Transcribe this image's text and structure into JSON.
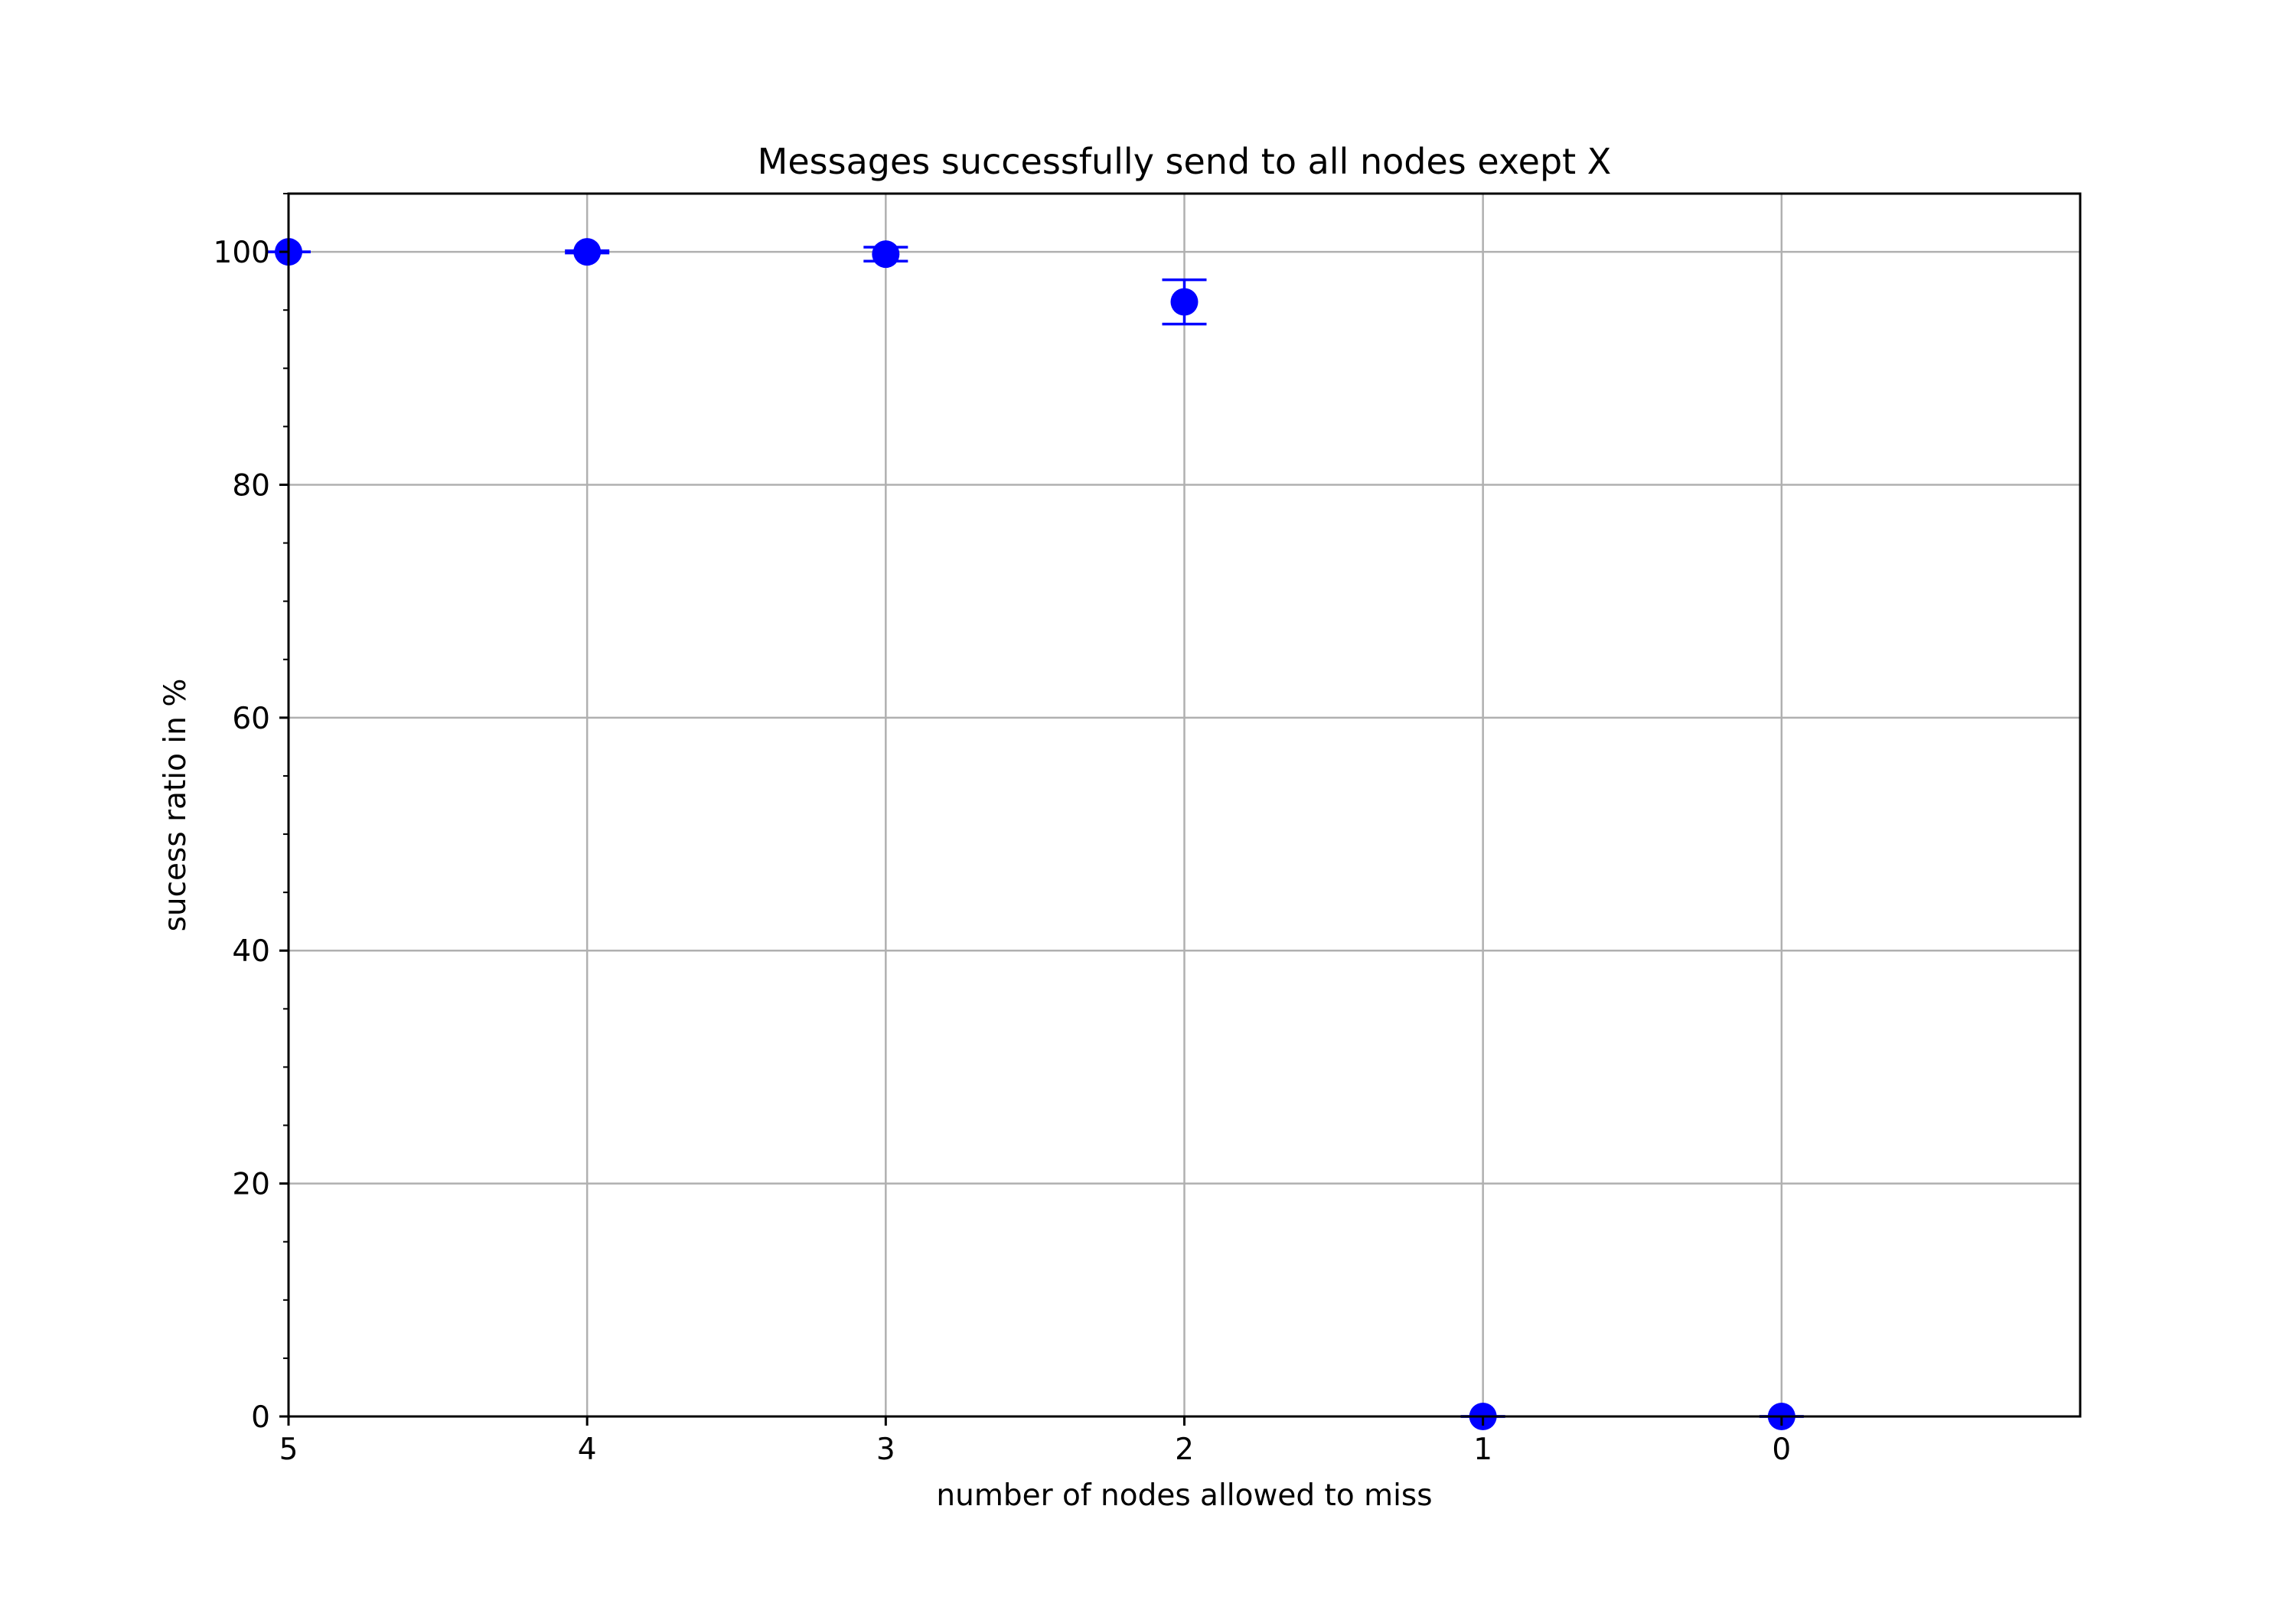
{
  "chart_data": {
    "type": "scatter",
    "title": "Messages successfully send to all nodes exept X",
    "xlabel": "number of nodes allowed to miss",
    "ylabel": "sucess ratio in %",
    "x_axis_inverted": true,
    "xlim": [
      5,
      -1
    ],
    "ylim": [
      0,
      105
    ],
    "x_ticks": [
      5,
      4,
      3,
      2,
      1,
      0
    ],
    "y_ticks": [
      0,
      20,
      40,
      60,
      80,
      100
    ],
    "y_minor_step": 5,
    "grid": true,
    "legend": "none",
    "series": [
      {
        "color": "#0000ff",
        "marker": "circle",
        "points": [
          {
            "x": 5,
            "y": 100.0,
            "err": 0.0
          },
          {
            "x": 4,
            "y": 100.0,
            "err": 0.1
          },
          {
            "x": 3,
            "y": 99.8,
            "err": 0.6
          },
          {
            "x": 2,
            "y": 95.7,
            "err": 1.9
          },
          {
            "x": 1,
            "y": 0.0,
            "err": 0.0
          },
          {
            "x": 0,
            "y": 0.0,
            "err": 0.0
          }
        ]
      }
    ]
  }
}
